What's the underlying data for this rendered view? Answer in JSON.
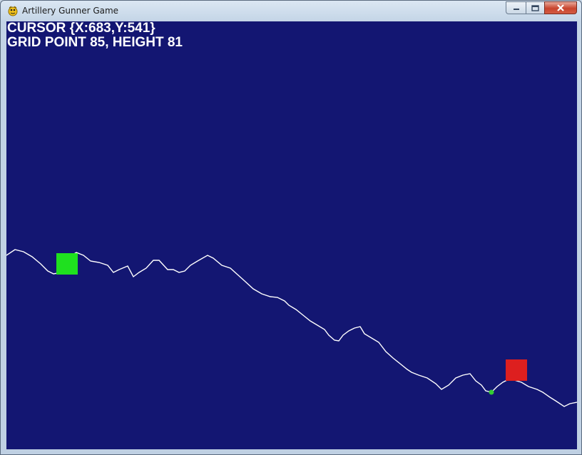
{
  "window": {
    "title": "Artillery Gunner Game",
    "app_icon": "python-snake-icon",
    "caption_buttons": [
      "minimize",
      "maximize",
      "close"
    ]
  },
  "hud": {
    "cursor_text": "CURSOR {X:683,Y:541}",
    "grid_text": "GRID POINT 85, HEIGHT 81"
  },
  "game": {
    "background_color": "#131672",
    "terrain_color": "#ffffff",
    "player_tank": {
      "color": "#1fe01f"
    },
    "enemy_tank": {
      "color": "#dd1f1f"
    },
    "cursor_marker": {
      "color": "#33cc33"
    }
  }
}
